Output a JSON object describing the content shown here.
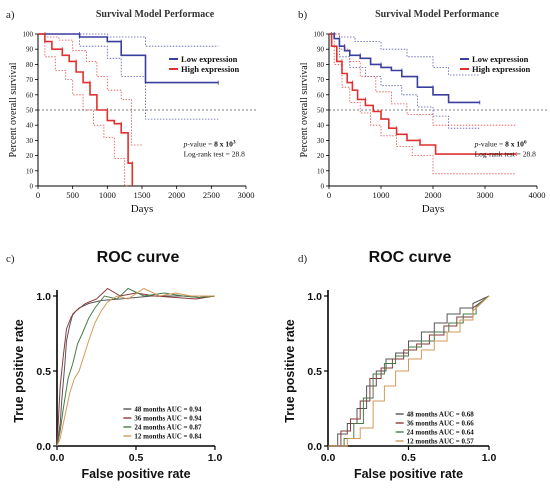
{
  "chart_data": [
    {
      "panel_label": "a)",
      "type": "line",
      "title": "Survival Model Performace",
      "xlabel": "Days",
      "ylabel": "Percent overall survival",
      "xlim": [
        0,
        3000
      ],
      "ylim": [
        0,
        100
      ],
      "xticks": [
        0,
        500,
        1000,
        1500,
        2000,
        2500,
        3000
      ],
      "yticks": [
        0,
        10,
        20,
        30,
        40,
        50,
        60,
        70,
        80,
        90,
        100
      ],
      "reference_line_y": 50,
      "legend_position": "top-right",
      "annotation": {
        "pvalue_prefix": "p",
        "pvalue_mid": "-value = ",
        "pvalue_value": "8 x 10",
        "pvalue_exp": "3",
        "logrank": "Log-rank test = 28.8"
      },
      "series": [
        {
          "name": "Low expression",
          "color": "#3a3f9e",
          "x": [
            0,
            600,
            600,
            1000,
            1000,
            1200,
            1200,
            1550,
            1550,
            2600
          ],
          "y": [
            100,
            100,
            98,
            98,
            95,
            95,
            86,
            86,
            68,
            68
          ],
          "ci_upper_x": [
            0,
            1000,
            1000,
            1550,
            1550,
            2600
          ],
          "ci_upper_y": [
            100,
            100,
            98,
            98,
            92,
            92
          ],
          "ci_lower_x": [
            0,
            600,
            600,
            1000,
            1000,
            1200,
            1200,
            1550,
            1550,
            2600
          ],
          "ci_lower_y": [
            100,
            100,
            92,
            92,
            84,
            84,
            72,
            72,
            44,
            44
          ]
        },
        {
          "name": "High expression",
          "color": "#e03030",
          "x": [
            0,
            100,
            100,
            200,
            200,
            350,
            350,
            450,
            450,
            550,
            550,
            650,
            650,
            750,
            750,
            850,
            850,
            1000,
            1000,
            1100,
            1100,
            1200,
            1200,
            1300,
            1300,
            1360,
            1360
          ],
          "y": [
            100,
            100,
            95,
            95,
            90,
            90,
            86,
            86,
            82,
            82,
            75,
            75,
            68,
            68,
            60,
            60,
            50,
            50,
            43,
            43,
            41,
            41,
            35,
            35,
            15,
            15,
            0
          ],
          "ci_upper_x": [
            0,
            100,
            100,
            300,
            300,
            500,
            500,
            700,
            700,
            850,
            850,
            1000,
            1000,
            1200,
            1200,
            1350,
            1350,
            1500
          ],
          "ci_upper_y": [
            100,
            100,
            98,
            98,
            96,
            96,
            89,
            89,
            82,
            82,
            72,
            72,
            63,
            63,
            57,
            57,
            27,
            27
          ],
          "ci_lower_x": [
            0,
            100,
            100,
            250,
            250,
            400,
            400,
            500,
            500,
            650,
            650,
            800,
            800,
            950,
            950,
            1100,
            1100,
            1250,
            1250,
            1300
          ],
          "ci_lower_y": [
            100,
            100,
            85,
            85,
            76,
            76,
            70,
            70,
            60,
            60,
            50,
            50,
            40,
            40,
            32,
            32,
            18,
            18,
            0,
            0
          ]
        }
      ]
    },
    {
      "panel_label": "b)",
      "type": "line",
      "title": "Survival Model Performance",
      "xlabel": "Days",
      "ylabel": "Percent overall survival",
      "xlim": [
        0,
        4000
      ],
      "ylim": [
        0,
        100
      ],
      "xticks": [
        0,
        1000,
        2000,
        3000,
        4000
      ],
      "yticks": [
        0,
        10,
        20,
        30,
        40,
        50,
        60,
        70,
        80,
        90,
        100
      ],
      "reference_line_y": 50,
      "legend_position": "top-right",
      "annotation": {
        "pvalue_prefix": "p",
        "pvalue_mid": "-value = ",
        "pvalue_value": "8 x 10",
        "pvalue_exp": "6",
        "logrank": "Log-rank test = 28.8"
      },
      "series": [
        {
          "name": "Low expression",
          "color": "#3a3f9e",
          "x": [
            0,
            100,
            100,
            200,
            200,
            300,
            300,
            400,
            400,
            600,
            600,
            800,
            800,
            1000,
            1000,
            1200,
            1200,
            1400,
            1400,
            1700,
            1700,
            2000,
            2000,
            2300,
            2300,
            2900
          ],
          "y": [
            100,
            100,
            97,
            97,
            92,
            92,
            89,
            89,
            86,
            86,
            84,
            84,
            80,
            80,
            78,
            78,
            76,
            76,
            72,
            72,
            65,
            65,
            60,
            60,
            55,
            55
          ],
          "ci_upper_x": [
            0,
            200,
            200,
            500,
            500,
            1000,
            1000,
            1500,
            1500,
            2000,
            2000,
            2300,
            2300,
            2900
          ],
          "ci_upper_y": [
            100,
            100,
            98,
            98,
            95,
            95,
            90,
            90,
            85,
            85,
            78,
            78,
            73,
            73
          ],
          "ci_lower_x": [
            0,
            200,
            200,
            400,
            400,
            700,
            700,
            1000,
            1000,
            1400,
            1400,
            1700,
            1700,
            2000,
            2000,
            2300,
            2300,
            2900
          ],
          "ci_lower_y": [
            100,
            100,
            85,
            85,
            78,
            78,
            72,
            72,
            66,
            66,
            60,
            60,
            52,
            52,
            46,
            46,
            38,
            38
          ]
        },
        {
          "name": "High expression",
          "color": "#e03030",
          "x": [
            0,
            50,
            50,
            150,
            150,
            250,
            250,
            350,
            350,
            450,
            450,
            550,
            550,
            700,
            700,
            850,
            850,
            1000,
            1000,
            1150,
            1150,
            1300,
            1300,
            1500,
            1500,
            1750,
            1750,
            2050,
            2050,
            3600
          ],
          "y": [
            100,
            100,
            92,
            92,
            82,
            82,
            74,
            74,
            68,
            68,
            63,
            63,
            57,
            57,
            53,
            53,
            49,
            49,
            44,
            44,
            38,
            38,
            34,
            34,
            30,
            30,
            27,
            27,
            21,
            21
          ],
          "ci_upper_x": [
            0,
            200,
            200,
            400,
            400,
            600,
            600,
            900,
            900,
            1200,
            1200,
            1500,
            1500,
            2000,
            2000,
            3600
          ],
          "ci_upper_y": [
            100,
            100,
            90,
            90,
            82,
            82,
            72,
            72,
            62,
            62,
            54,
            54,
            47,
            47,
            40,
            40
          ],
          "ci_lower_x": [
            0,
            100,
            100,
            250,
            250,
            400,
            400,
            600,
            600,
            800,
            800,
            1000,
            1000,
            1300,
            1300,
            1600,
            1600,
            2000,
            2000,
            3600
          ],
          "ci_lower_y": [
            100,
            100,
            80,
            80,
            65,
            65,
            55,
            55,
            48,
            48,
            40,
            40,
            33,
            33,
            26,
            26,
            20,
            20,
            8,
            8
          ]
        }
      ]
    },
    {
      "panel_label": "c)",
      "type": "line",
      "title": "ROC curve",
      "xlabel": "False positive rate",
      "ylabel": "True positive rate",
      "xlim": [
        0,
        1
      ],
      "ylim": [
        0,
        1
      ],
      "xticks": [
        "0.0",
        "0.5",
        "1.0"
      ],
      "yticks": [
        "0.0",
        "0.5",
        "1.0"
      ],
      "legend_position": "bottom-right",
      "series": [
        {
          "name": "48 months AUC = 0.94",
          "color": "#555555",
          "x": [
            0,
            0.02,
            0.03,
            0.05,
            0.06,
            0.08,
            0.1,
            0.14,
            0.2,
            0.28,
            0.4,
            0.5,
            0.6,
            0.7,
            0.8,
            0.9,
            1.0
          ],
          "y": [
            0,
            0.15,
            0.3,
            0.55,
            0.7,
            0.8,
            0.88,
            0.92,
            0.95,
            0.97,
            0.98,
            0.99,
            1.0,
            1.0,
            1.0,
            0.99,
            1.0
          ]
        },
        {
          "name": "36 months AUC = 0.94",
          "color": "#8a3a3a",
          "x": [
            0,
            0.01,
            0.02,
            0.04,
            0.06,
            0.09,
            0.12,
            0.18,
            0.25,
            0.32,
            0.4,
            0.5,
            0.62,
            0.75,
            0.88,
            1.0
          ],
          "y": [
            0,
            0.2,
            0.4,
            0.6,
            0.78,
            0.86,
            0.9,
            0.95,
            0.98,
            1.05,
            1.0,
            1.02,
            1.0,
            0.99,
            0.98,
            1.0
          ]
        },
        {
          "name": "24 months AUC = 0.87",
          "color": "#4a7a4a",
          "x": [
            0,
            0.02,
            0.04,
            0.07,
            0.1,
            0.13,
            0.16,
            0.2,
            0.24,
            0.3,
            0.38,
            0.45,
            0.55,
            0.68,
            0.8,
            0.9,
            1.0
          ],
          "y": [
            0,
            0.1,
            0.25,
            0.45,
            0.55,
            0.68,
            0.75,
            0.85,
            0.92,
            1.0,
            0.98,
            1.05,
            1.0,
            1.02,
            1.0,
            0.99,
            1.0
          ]
        },
        {
          "name": "12 months AUC = 0.84",
          "color": "#d49a5a",
          "x": [
            0,
            0.02,
            0.05,
            0.08,
            0.11,
            0.14,
            0.17,
            0.2,
            0.24,
            0.28,
            0.32,
            0.38,
            0.45,
            0.55,
            0.65,
            0.75,
            0.85,
            1.0
          ],
          "y": [
            0,
            0.05,
            0.2,
            0.35,
            0.45,
            0.5,
            0.6,
            0.7,
            0.82,
            0.9,
            0.96,
            1.0,
            0.98,
            1.05,
            1.0,
            1.02,
            1.0,
            1.0
          ]
        }
      ]
    },
    {
      "panel_label": "d)",
      "type": "line",
      "title": "ROC curve",
      "xlabel": "False positive rate",
      "ylabel": "True positive rate",
      "xlim": [
        0,
        1
      ],
      "ylim": [
        0,
        1
      ],
      "xticks": [
        "0.0",
        "0.5",
        "1.0"
      ],
      "yticks": [
        "0.0",
        "0.5",
        "1.0"
      ],
      "legend_position": "bottom-right",
      "series": [
        {
          "name": "48 months AUC = 0.68",
          "color": "#555555",
          "x": [
            0,
            0.06,
            0.06,
            0.12,
            0.12,
            0.18,
            0.18,
            0.24,
            0.24,
            0.3,
            0.3,
            0.36,
            0.36,
            0.42,
            0.42,
            0.5,
            0.5,
            0.58,
            0.58,
            0.66,
            0.66,
            0.74,
            0.74,
            0.82,
            0.82,
            0.9,
            0.9,
            1.0
          ],
          "y": [
            0,
            0,
            0.08,
            0.08,
            0.15,
            0.15,
            0.25,
            0.25,
            0.4,
            0.4,
            0.5,
            0.5,
            0.58,
            0.58,
            0.62,
            0.62,
            0.7,
            0.7,
            0.76,
            0.76,
            0.82,
            0.82,
            0.88,
            0.88,
            0.92,
            0.92,
            0.95,
            1.0
          ]
        },
        {
          "name": "36 months AUC = 0.66",
          "color": "#8a3a3a",
          "x": [
            0,
            0.08,
            0.08,
            0.14,
            0.14,
            0.2,
            0.2,
            0.26,
            0.26,
            0.33,
            0.33,
            0.4,
            0.4,
            0.47,
            0.47,
            0.55,
            0.55,
            0.63,
            0.63,
            0.72,
            0.72,
            0.8,
            0.8,
            0.9,
            0.9,
            1.0
          ],
          "y": [
            0,
            0,
            0.1,
            0.1,
            0.18,
            0.18,
            0.3,
            0.3,
            0.45,
            0.45,
            0.52,
            0.52,
            0.58,
            0.58,
            0.64,
            0.64,
            0.68,
            0.68,
            0.74,
            0.74,
            0.8,
            0.8,
            0.86,
            0.86,
            0.92,
            1.0
          ]
        },
        {
          "name": "24 months AUC = 0.64",
          "color": "#4a7a4a",
          "x": [
            0,
            0.1,
            0.1,
            0.16,
            0.16,
            0.22,
            0.22,
            0.28,
            0.28,
            0.35,
            0.35,
            0.42,
            0.42,
            0.5,
            0.5,
            0.58,
            0.58,
            0.66,
            0.66,
            0.75,
            0.75,
            0.84,
            0.84,
            0.92,
            0.92,
            1.0
          ],
          "y": [
            0,
            0,
            0.05,
            0.05,
            0.15,
            0.15,
            0.32,
            0.32,
            0.48,
            0.48,
            0.55,
            0.55,
            0.6,
            0.6,
            0.66,
            0.66,
            0.7,
            0.7,
            0.76,
            0.76,
            0.82,
            0.82,
            0.88,
            0.88,
            0.93,
            1.0
          ]
        },
        {
          "name": "12 months AUC = 0.57",
          "color": "#d49a5a",
          "x": [
            0,
            0.12,
            0.12,
            0.2,
            0.2,
            0.28,
            0.28,
            0.35,
            0.35,
            0.42,
            0.42,
            0.5,
            0.5,
            0.58,
            0.58,
            0.66,
            0.66,
            0.74,
            0.74,
            0.82,
            0.82,
            0.9,
            0.9,
            1.0
          ],
          "y": [
            0,
            0,
            0.05,
            0.05,
            0.12,
            0.12,
            0.3,
            0.3,
            0.4,
            0.4,
            0.5,
            0.5,
            0.58,
            0.58,
            0.64,
            0.64,
            0.7,
            0.7,
            0.76,
            0.76,
            0.84,
            0.84,
            0.9,
            1.0
          ]
        }
      ]
    }
  ]
}
